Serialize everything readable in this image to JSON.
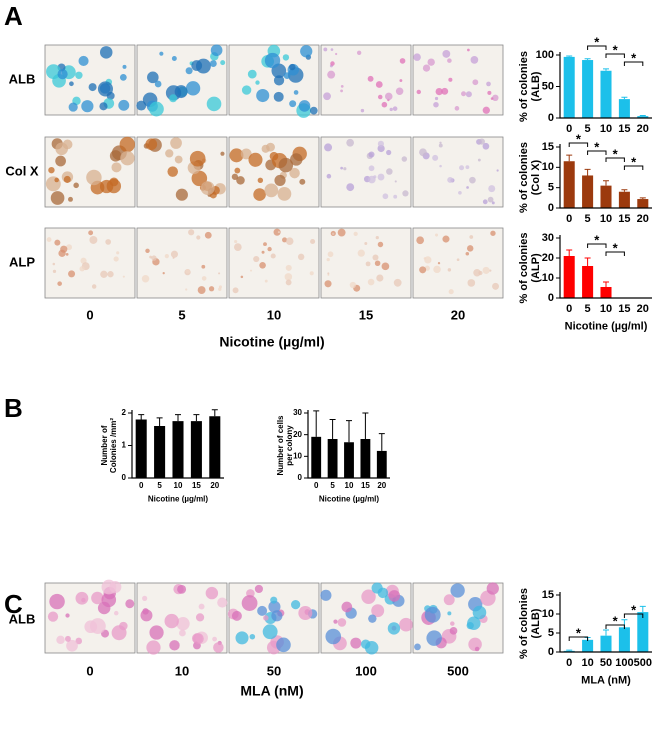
{
  "figure": {
    "panel_a": {
      "letter": "A",
      "rows": [
        "ALB",
        "Col X",
        "ALP"
      ],
      "columns": [
        "0",
        "5",
        "10",
        "15",
        "20"
      ],
      "xlabel": "Nicotine (µg/ml)"
    },
    "panel_b": {
      "letter": "B"
    },
    "panel_c": {
      "letter": "C",
      "rows": [
        "ALB"
      ],
      "columns": [
        "0",
        "10",
        "50",
        "100",
        "500"
      ],
      "xlabel": "MLA (nM)"
    }
  },
  "chart_data": [
    {
      "type": "bar",
      "categories": [
        "0",
        "5",
        "10",
        "15",
        "20"
      ],
      "values": [
        97,
        92,
        75,
        30,
        3
      ],
      "errors": [
        1.5,
        2,
        3,
        3,
        1
      ],
      "color": "#1cc0ea",
      "ylim": [
        0,
        100
      ],
      "yticks": [
        0,
        50,
        100
      ],
      "ylabel": [
        "% of colonies",
        "(ALB)"
      ],
      "annotations": [
        "*",
        "*",
        "*"
      ]
    },
    {
      "type": "bar",
      "categories": [
        "0",
        "5",
        "10",
        "15",
        "20"
      ],
      "values": [
        11.5,
        8,
        5.5,
        4,
        2.2
      ],
      "errors": [
        1.5,
        1.5,
        1.2,
        0.5,
        0.3
      ],
      "color": "#9c3a0e",
      "ylim": [
        0,
        15
      ],
      "yticks": [
        0,
        5,
        10,
        15
      ],
      "ylabel": [
        "% of colonies",
        "(Col X)"
      ],
      "annotations": [
        "*",
        "*",
        "*",
        "*"
      ]
    },
    {
      "type": "bar",
      "categories": [
        "0",
        "5",
        "10",
        "15",
        "20"
      ],
      "values": [
        21,
        16,
        5.5,
        0,
        0
      ],
      "errors": [
        3,
        4,
        2.5,
        0,
        0
      ],
      "color": "#ff0000",
      "ylim": [
        0,
        30
      ],
      "yticks": [
        0,
        10,
        20,
        30
      ],
      "ylabel": [
        "% of colonies",
        "(ALP)"
      ],
      "xlabel": "Nicotine (µg/ml)",
      "annotations": [
        "*",
        "*"
      ]
    },
    {
      "type": "bar",
      "categories": [
        "0",
        "5",
        "10",
        "15",
        "20"
      ],
      "values": [
        1.8,
        1.6,
        1.75,
        1.75,
        1.9
      ],
      "errors": [
        0.15,
        0.25,
        0.2,
        0.2,
        0.2
      ],
      "color": "#000000",
      "ylim": [
        0,
        2
      ],
      "yticks": [
        0,
        1,
        2
      ],
      "ylabel": [
        "Number of",
        "Colonies /mm²"
      ],
      "xlabel": "Nicotine (µg/ml)"
    },
    {
      "type": "bar",
      "categories": [
        "0",
        "5",
        "10",
        "15",
        "20"
      ],
      "values": [
        19,
        18,
        16.5,
        18,
        12.5
      ],
      "errors": [
        12,
        9,
        10,
        12,
        8
      ],
      "color": "#000000",
      "ylim": [
        0,
        30
      ],
      "yticks": [
        0,
        10,
        20,
        30
      ],
      "ylabel": [
        "Number of cells",
        "per colony"
      ],
      "xlabel": "Nicotine (µg/ml)"
    },
    {
      "type": "bar",
      "categories": [
        "0",
        "10",
        "50",
        "100",
        "500"
      ],
      "values": [
        0.3,
        3.2,
        4.3,
        6.5,
        10.5
      ],
      "errors": [
        0.2,
        0.6,
        1.5,
        2,
        1.5
      ],
      "color": "#1cc0ea",
      "ylim": [
        0,
        15
      ],
      "yticks": [
        0,
        5,
        10,
        15
      ],
      "ylabel": [
        "% of colonies",
        "(ALB)"
      ],
      "xlabel": "MLA (nM)",
      "annotations": [
        "*",
        "*",
        "*"
      ]
    }
  ]
}
